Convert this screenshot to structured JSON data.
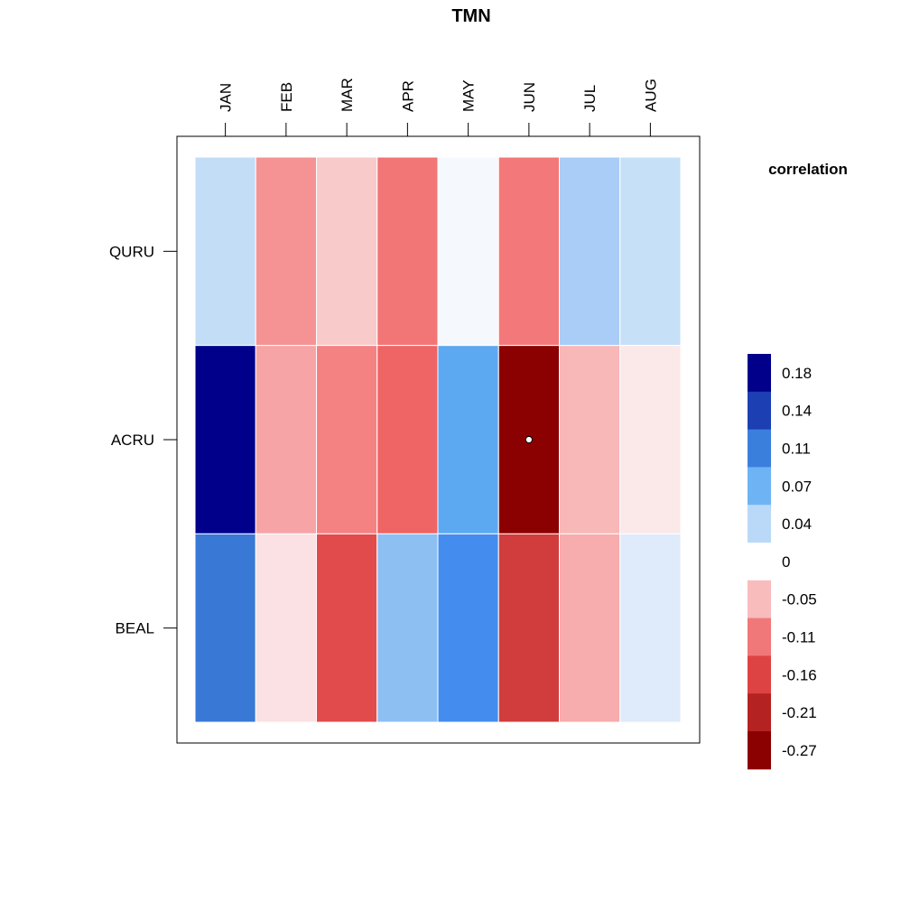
{
  "chart_data": {
    "type": "heatmap",
    "title": "TMN",
    "x_categories": [
      "JAN",
      "FEB",
      "MAR",
      "APR",
      "MAY",
      "JUN",
      "JUL",
      "AUG"
    ],
    "y_categories": [
      "QURU",
      "ACRU",
      "BEAL"
    ],
    "values": [
      [
        0.04,
        -0.09,
        -0.04,
        -0.12,
        0.0,
        -0.12,
        0.06,
        0.04
      ],
      [
        0.2,
        -0.07,
        -0.1,
        -0.14,
        0.08,
        -0.29,
        -0.05,
        -0.01
      ],
      [
        0.12,
        -0.02,
        -0.17,
        0.06,
        0.11,
        -0.19,
        -0.06,
        0.02
      ]
    ],
    "cell_colors": [
      [
        "#c3ddf7",
        "#f49294",
        "#f8caca",
        "#f37676",
        "#f5f8fc",
        "#f37879",
        "#a9cdf6",
        "#c6e0f8"
      ],
      [
        "#00008b",
        "#f6a4a6",
        "#f48282",
        "#ef6465",
        "#5da9f1",
        "#8b0000",
        "#f8b8b8",
        "#fbe9ea"
      ],
      [
        "#3a78d6",
        "#fbe1e3",
        "#e24b4b",
        "#8dbff3",
        "#448def",
        "#d13c3c",
        "#f7acad",
        "#dfebfb"
      ]
    ],
    "significance_markers": [
      {
        "row": "ACRU",
        "col": "JUN"
      }
    ],
    "legend": {
      "title": "correlation",
      "position": "right",
      "labels": [
        "0.18",
        "0.14",
        "0.11",
        "0.07",
        "0.04",
        "0",
        "-0.05",
        "-0.11",
        "-0.16",
        "-0.21",
        "-0.27"
      ],
      "colors": [
        "#00008b",
        "#1c3fb4",
        "#3b7fdd",
        "#6eb4f5",
        "#bad9f8",
        "#ffffff",
        "#f8bcbd",
        "#f07879",
        "#de4343",
        "#b52222",
        "#8b0000"
      ]
    }
  }
}
